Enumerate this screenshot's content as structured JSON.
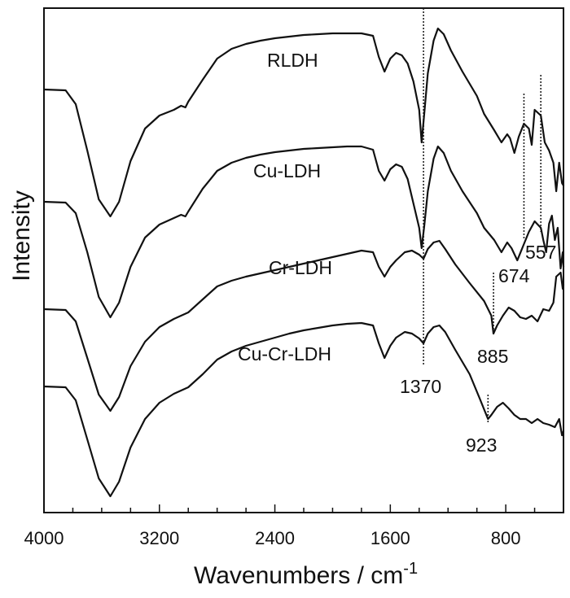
{
  "chart_data": {
    "type": "line",
    "xlabel": "Wavenumbers / cm",
    "xlabel_superscript": "-1",
    "ylabel": "Intensity",
    "xlim": [
      4000,
      400
    ],
    "x_reversed": true,
    "y_ticks_shown": false,
    "grid": false,
    "x_ticks": [
      "4000",
      "3200",
      "2400",
      "1600",
      "800"
    ],
    "x_tick_values": [
      4000,
      3200,
      2400,
      1600,
      800
    ],
    "line_color": "#111111",
    "series": [
      {
        "name": "RLDH",
        "baseline": 100,
        "points": [
          [
            4000,
            100
          ],
          [
            3850,
            101
          ],
          [
            3780,
            118
          ],
          [
            3700,
            175
          ],
          [
            3620,
            235
          ],
          [
            3540,
            256
          ],
          [
            3480,
            238
          ],
          [
            3400,
            188
          ],
          [
            3300,
            148
          ],
          [
            3200,
            132
          ],
          [
            3100,
            125
          ],
          [
            3050,
            120
          ],
          [
            3020,
            122
          ],
          [
            3000,
            115
          ],
          [
            2900,
            88
          ],
          [
            2800,
            62
          ],
          [
            2700,
            50
          ],
          [
            2600,
            44
          ],
          [
            2500,
            40
          ],
          [
            2400,
            37
          ],
          [
            2300,
            35
          ],
          [
            2200,
            33
          ],
          [
            2100,
            32
          ],
          [
            2000,
            31
          ],
          [
            1900,
            31
          ],
          [
            1800,
            31
          ],
          [
            1720,
            34
          ],
          [
            1680,
            60
          ],
          [
            1640,
            78
          ],
          [
            1600,
            62
          ],
          [
            1560,
            55
          ],
          [
            1520,
            58
          ],
          [
            1480,
            68
          ],
          [
            1440,
            90
          ],
          [
            1400,
            125
          ],
          [
            1383,
            165
          ],
          [
            1365,
            130
          ],
          [
            1340,
            80
          ],
          [
            1300,
            40
          ],
          [
            1270,
            25
          ],
          [
            1230,
            32
          ],
          [
            1180,
            52
          ],
          [
            1100,
            78
          ],
          [
            1000,
            108
          ],
          [
            950,
            130
          ],
          [
            880,
            150
          ],
          [
            830,
            165
          ],
          [
            790,
            155
          ],
          [
            770,
            160
          ],
          [
            740,
            178
          ],
          [
            710,
            158
          ],
          [
            674,
            142
          ],
          [
            640,
            148
          ],
          [
            620,
            168
          ],
          [
            600,
            125
          ],
          [
            557,
            132
          ],
          [
            530,
            165
          ],
          [
            500,
            175
          ],
          [
            470,
            190
          ],
          [
            450,
            225
          ],
          [
            430,
            190
          ],
          [
            410,
            215
          ],
          [
            400,
            218
          ]
        ]
      },
      {
        "name": "Cu-LDH",
        "baseline": 238,
        "points": [
          [
            4000,
            238
          ],
          [
            3850,
            239
          ],
          [
            3780,
            252
          ],
          [
            3700,
            300
          ],
          [
            3620,
            355
          ],
          [
            3540,
            380
          ],
          [
            3480,
            362
          ],
          [
            3400,
            318
          ],
          [
            3300,
            282
          ],
          [
            3200,
            266
          ],
          [
            3100,
            258
          ],
          [
            3050,
            254
          ],
          [
            3020,
            256
          ],
          [
            3000,
            250
          ],
          [
            2900,
            222
          ],
          [
            2800,
            200
          ],
          [
            2700,
            190
          ],
          [
            2600,
            184
          ],
          [
            2500,
            180
          ],
          [
            2400,
            177
          ],
          [
            2300,
            175
          ],
          [
            2200,
            173
          ],
          [
            2100,
            172
          ],
          [
            2000,
            171
          ],
          [
            1900,
            170
          ],
          [
            1800,
            170
          ],
          [
            1720,
            174
          ],
          [
            1680,
            200
          ],
          [
            1640,
            212
          ],
          [
            1600,
            198
          ],
          [
            1560,
            192
          ],
          [
            1520,
            195
          ],
          [
            1480,
            210
          ],
          [
            1440,
            240
          ],
          [
            1400,
            270
          ],
          [
            1383,
            295
          ],
          [
            1365,
            268
          ],
          [
            1340,
            225
          ],
          [
            1300,
            185
          ],
          [
            1270,
            170
          ],
          [
            1230,
            178
          ],
          [
            1180,
            200
          ],
          [
            1100,
            225
          ],
          [
            1000,
            252
          ],
          [
            950,
            270
          ],
          [
            880,
            285
          ],
          [
            830,
            300
          ],
          [
            790,
            288
          ],
          [
            760,
            295
          ],
          [
            720,
            310
          ],
          [
            674,
            290
          ],
          [
            640,
            275
          ],
          [
            600,
            262
          ],
          [
            557,
            270
          ],
          [
            540,
            285
          ],
          [
            520,
            300
          ],
          [
            500,
            265
          ],
          [
            480,
            255
          ],
          [
            460,
            285
          ],
          [
            440,
            270
          ],
          [
            420,
            320
          ],
          [
            405,
            300
          ],
          [
            400,
            318
          ]
        ]
      },
      {
        "name": "Cr-LDH",
        "baseline": 370,
        "points": [
          [
            4000,
            370
          ],
          [
            3850,
            371
          ],
          [
            3780,
            385
          ],
          [
            3700,
            430
          ],
          [
            3620,
            475
          ],
          [
            3540,
            495
          ],
          [
            3480,
            478
          ],
          [
            3400,
            440
          ],
          [
            3300,
            410
          ],
          [
            3200,
            392
          ],
          [
            3100,
            382
          ],
          [
            3000,
            374
          ],
          [
            2900,
            358
          ],
          [
            2800,
            342
          ],
          [
            2700,
            335
          ],
          [
            2600,
            330
          ],
          [
            2500,
            326
          ],
          [
            2400,
            322
          ],
          [
            2300,
            318
          ],
          [
            2200,
            314
          ],
          [
            2100,
            310
          ],
          [
            2000,
            306
          ],
          [
            1900,
            302
          ],
          [
            1800,
            298
          ],
          [
            1720,
            300
          ],
          [
            1680,
            318
          ],
          [
            1640,
            330
          ],
          [
            1600,
            318
          ],
          [
            1560,
            310
          ],
          [
            1500,
            300
          ],
          [
            1450,
            298
          ],
          [
            1400,
            303
          ],
          [
            1370,
            308
          ],
          [
            1340,
            296
          ],
          [
            1300,
            288
          ],
          [
            1260,
            286
          ],
          [
            1220,
            296
          ],
          [
            1150,
            315
          ],
          [
            1050,
            338
          ],
          [
            950,
            360
          ],
          [
            900,
            378
          ],
          [
            885,
            400
          ],
          [
            860,
            390
          ],
          [
            820,
            378
          ],
          [
            780,
            368
          ],
          [
            740,
            372
          ],
          [
            700,
            380
          ],
          [
            660,
            382
          ],
          [
            620,
            378
          ],
          [
            580,
            385
          ],
          [
            540,
            370
          ],
          [
            500,
            372
          ],
          [
            470,
            362
          ],
          [
            450,
            330
          ],
          [
            420,
            325
          ],
          [
            405,
            345
          ],
          [
            400,
            340
          ]
        ]
      },
      {
        "name": "Cu-Cr-LDH",
        "baseline": 465,
        "points": [
          [
            4000,
            465
          ],
          [
            3850,
            466
          ],
          [
            3780,
            482
          ],
          [
            3700,
            530
          ],
          [
            3620,
            578
          ],
          [
            3540,
            600
          ],
          [
            3480,
            582
          ],
          [
            3400,
            540
          ],
          [
            3300,
            505
          ],
          [
            3200,
            485
          ],
          [
            3100,
            474
          ],
          [
            3000,
            466
          ],
          [
            2900,
            450
          ],
          [
            2800,
            432
          ],
          [
            2700,
            422
          ],
          [
            2600,
            415
          ],
          [
            2500,
            410
          ],
          [
            2400,
            405
          ],
          [
            2300,
            400
          ],
          [
            2200,
            396
          ],
          [
            2100,
            393
          ],
          [
            2000,
            390
          ],
          [
            1900,
            388
          ],
          [
            1800,
            387
          ],
          [
            1720,
            390
          ],
          [
            1680,
            412
          ],
          [
            1640,
            430
          ],
          [
            1600,
            415
          ],
          [
            1560,
            405
          ],
          [
            1500,
            398
          ],
          [
            1450,
            400
          ],
          [
            1400,
            406
          ],
          [
            1370,
            412
          ],
          [
            1340,
            400
          ],
          [
            1300,
            392
          ],
          [
            1260,
            390
          ],
          [
            1220,
            398
          ],
          [
            1150,
            420
          ],
          [
            1050,
            450
          ],
          [
            980,
            480
          ],
          [
            923,
            505
          ],
          [
            900,
            500
          ],
          [
            860,
            490
          ],
          [
            820,
            485
          ],
          [
            780,
            492
          ],
          [
            740,
            500
          ],
          [
            700,
            505
          ],
          [
            660,
            505
          ],
          [
            620,
            510
          ],
          [
            580,
            505
          ],
          [
            540,
            510
          ],
          [
            500,
            512
          ],
          [
            460,
            515
          ],
          [
            430,
            505
          ],
          [
            410,
            525
          ],
          [
            400,
            520
          ]
        ]
      }
    ],
    "annotations": [
      {
        "text": "1370",
        "x": 1370
      },
      {
        "text": "885",
        "x": 885
      },
      {
        "text": "923",
        "x": 923
      },
      {
        "text": "674",
        "x": 674
      },
      {
        "text": "557",
        "x": 557
      }
    ]
  }
}
